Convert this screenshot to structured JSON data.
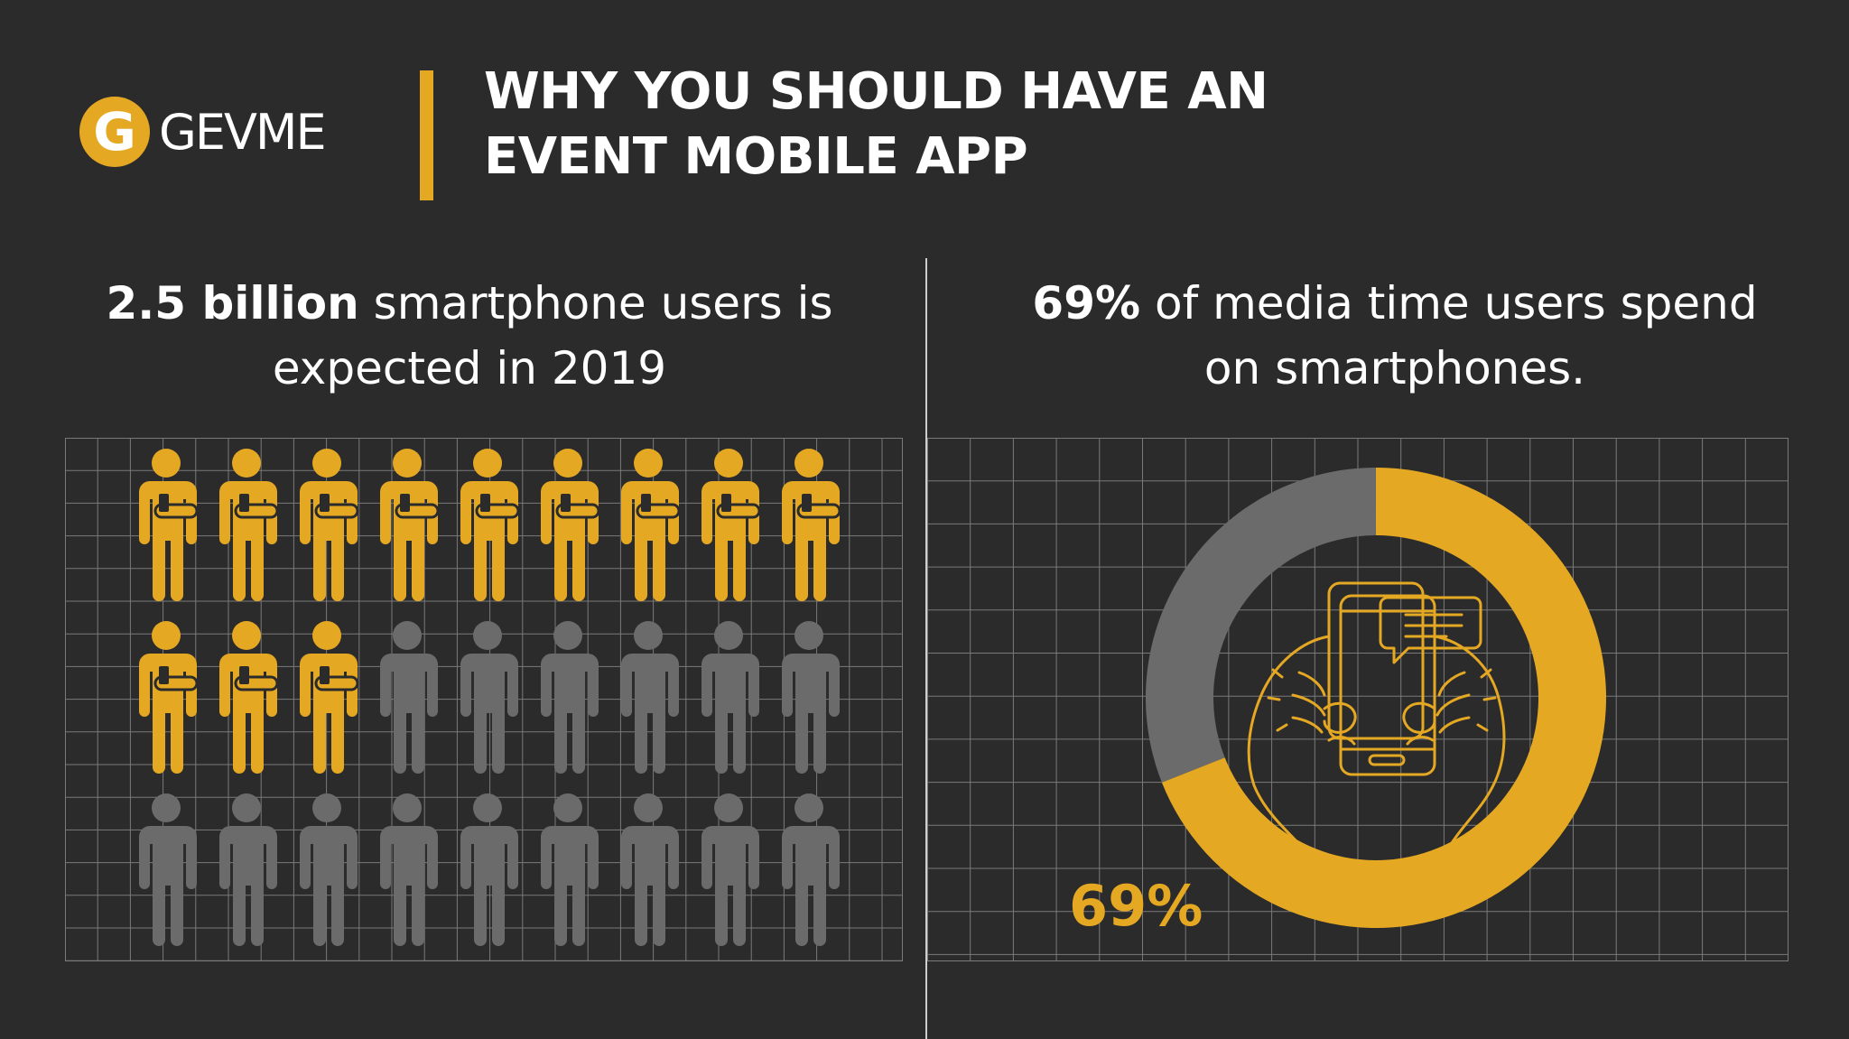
{
  "logo": {
    "mark_letter": "G",
    "wordmark": "GEVME"
  },
  "title": {
    "line1": "WHY YOU SHOULD HAVE AN",
    "line2": "EVENT MOBILE APP"
  },
  "left_stat": {
    "highlight": "2.5 billion",
    "text_line1": " smartphone users is",
    "text_line2": "expected in 2019"
  },
  "right_stat": {
    "highlight": "69%",
    "text_line1": " of media time users spend",
    "text_line2": "on smartphones."
  },
  "colors": {
    "accent": "#e5a823",
    "muted": "#6b6b6c",
    "background": "#2b2b2c",
    "grid": "#7a7a7a"
  },
  "people_chart": {
    "total": 27,
    "highlighted": 12,
    "icon": "person-with-phone-icon"
  },
  "donut_chart": {
    "value_percent": 69,
    "label": "69%",
    "icon": "hands-holding-phone-icon"
  }
}
